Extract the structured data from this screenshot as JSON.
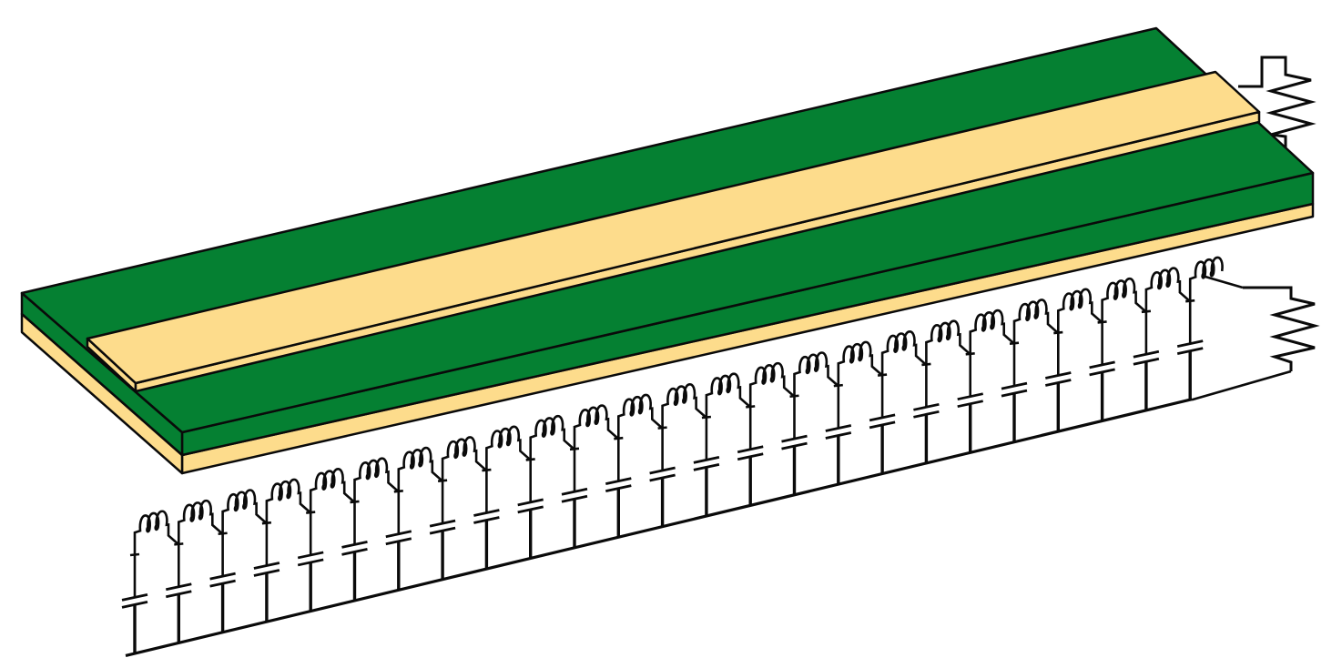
{
  "colors": {
    "dielectric_green": "#058032",
    "copper_trace": "#fddc8c",
    "outline": "#0a0a0a",
    "background": "#ffffff"
  },
  "structure": {
    "name": "microstrip-transmission-line",
    "layers": [
      "top-dielectric-green",
      "signal-trace-copper",
      "ground-plane-copper"
    ]
  },
  "equivalent_circuit": {
    "type": "distributed-LC-ladder",
    "sections": 25,
    "inductor_turns": 3,
    "termination": "resistor-zigzag"
  },
  "icons": {
    "inductor": "inductor-coil-icon",
    "capacitor": "capacitor-icon",
    "resistor": "resistor-zigzag-icon"
  }
}
